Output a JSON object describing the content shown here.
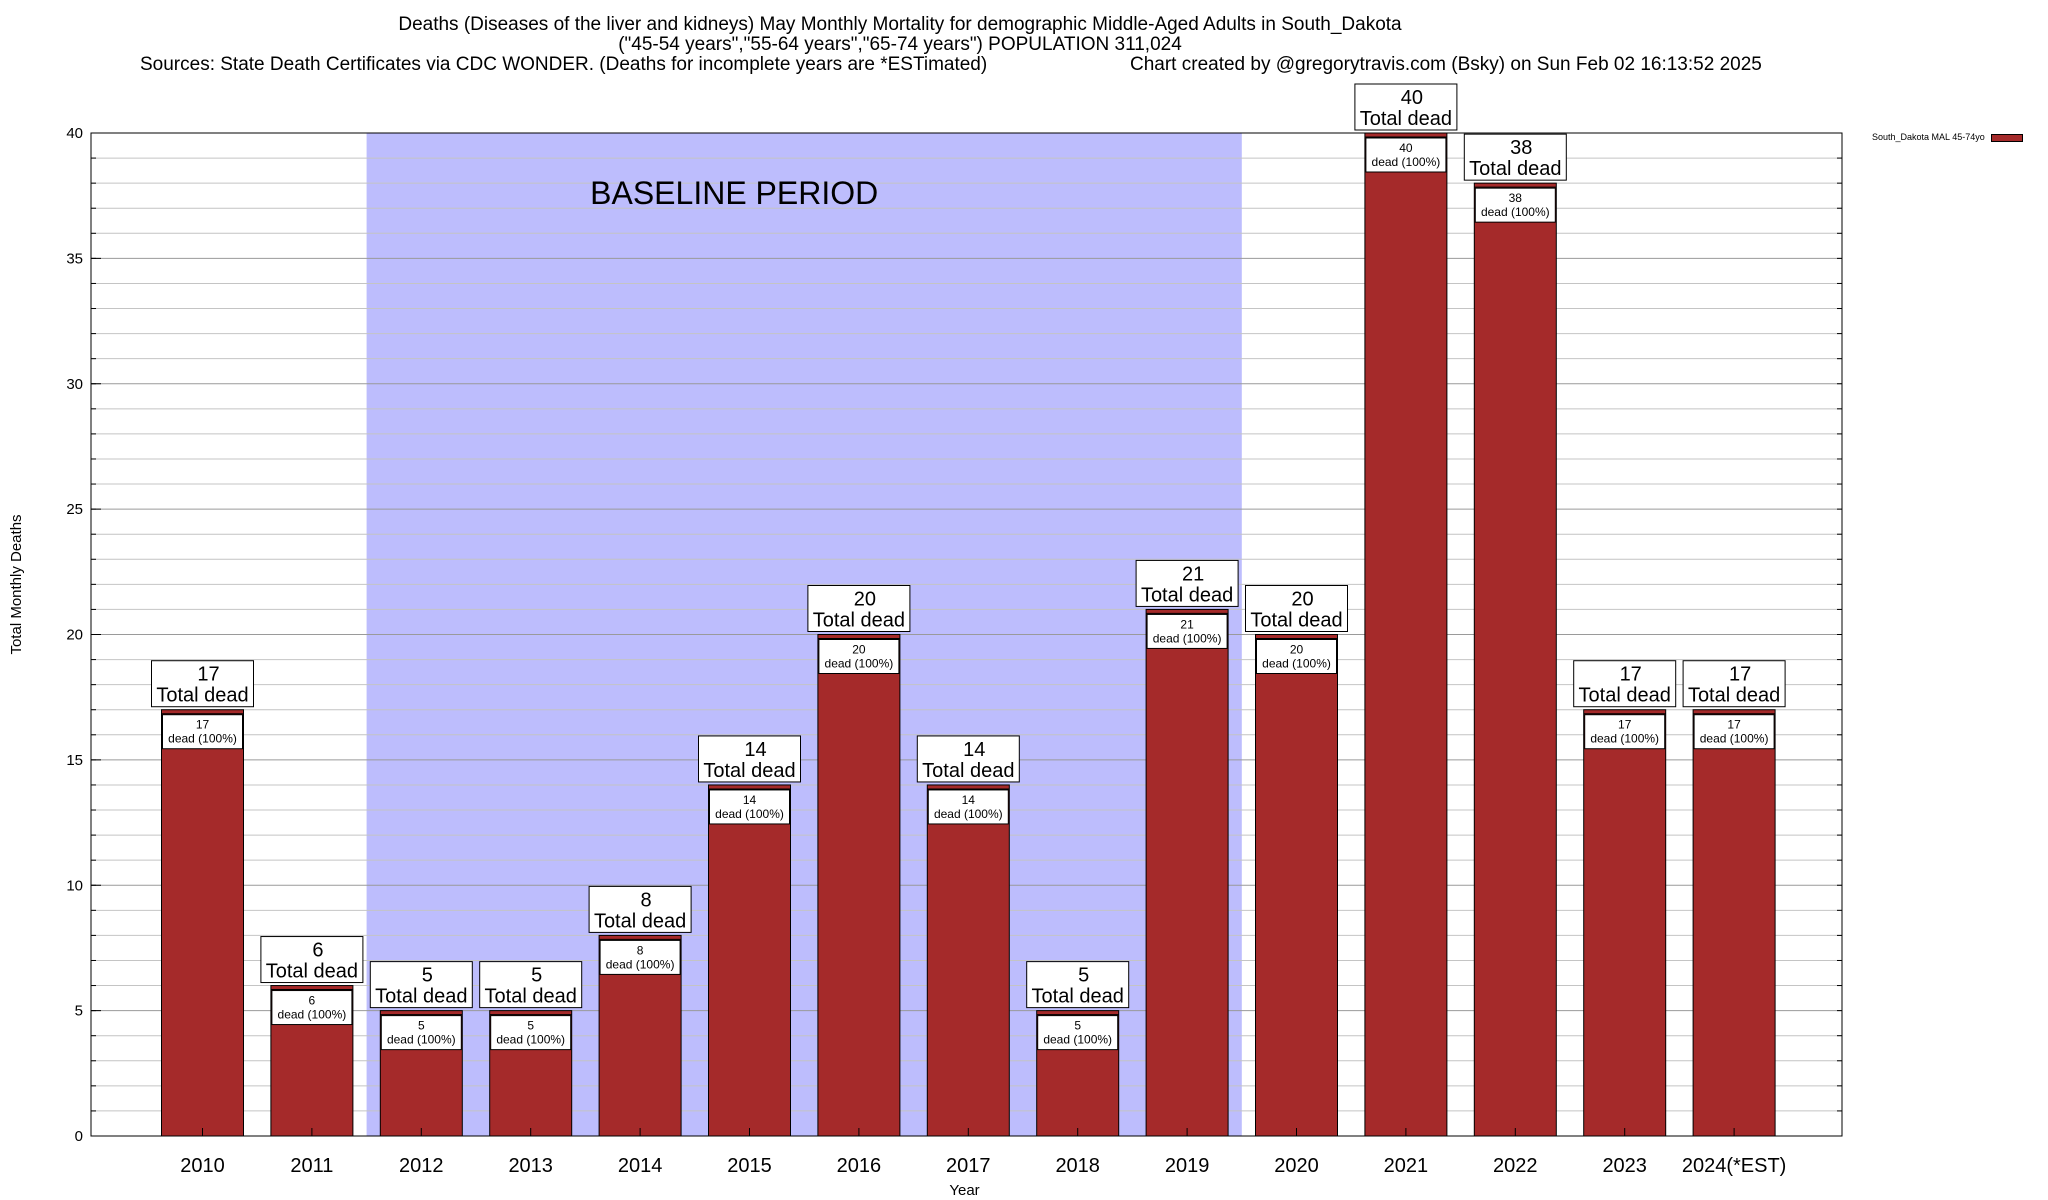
{
  "title": {
    "line1": "Deaths (Diseases of the liver and kidneys) May Monthly Mortality for demographic Middle-Aged Adults in South_Dakota",
    "line2": "(\"45-54 years\",\"55-64 years\",\"65-74 years\") POPULATION 311,024",
    "line3": "Sources: State Death Certificates via CDC WONDER. (Deaths for incomplete years are *ESTimated)",
    "credit": "Chart created by @gregorytravis.com (Bsky) on Sun Feb 02 16:13:52 2025"
  },
  "legend": {
    "label": "South_Dakota MAL 45-74yo"
  },
  "chart_data": {
    "type": "bar",
    "title": "Deaths (Diseases of the liver and kidneys) May Monthly Mortality for demographic Middle-Aged Adults in South_Dakota",
    "xlabel": "Year",
    "ylabel": "Total Monthly Deaths",
    "ylim": [
      0,
      40
    ],
    "yticks": [
      0,
      5,
      10,
      15,
      20,
      25,
      30,
      35,
      40
    ],
    "categories": [
      "2010",
      "2011",
      "2012",
      "2013",
      "2014",
      "2015",
      "2016",
      "2017",
      "2018",
      "2019",
      "2020",
      "2021",
      "2022",
      "2023",
      "2024(*EST)"
    ],
    "series": [
      {
        "name": "South_Dakota MAL 45-74yo",
        "color": "#a52a2a",
        "values": [
          17,
          6,
          5,
          5,
          8,
          14,
          20,
          14,
          5,
          21,
          20,
          40,
          38,
          17,
          17
        ]
      }
    ],
    "top_label_text": "Total dead",
    "inner_label_text": "dead (100%)",
    "baseline_region": {
      "label": "BASELINE PERIOD",
      "start_category": "2012",
      "end_category": "2019",
      "color": "#bdbdfd"
    },
    "grid": true
  }
}
